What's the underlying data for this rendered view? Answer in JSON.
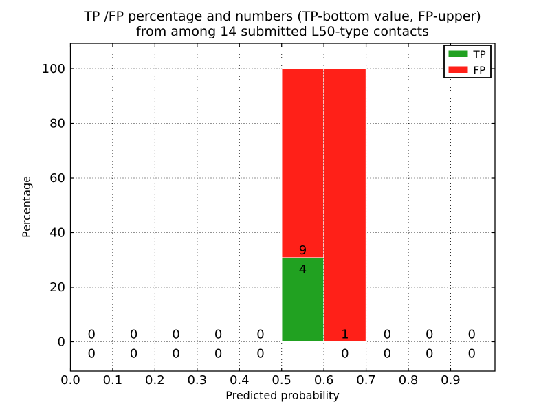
{
  "chart_data": {
    "type": "bar",
    "stacked": true,
    "title_line1": "TP /FP percentage and numbers (TP-bottom value, FP-upper)",
    "title_line2": "from among 14 submitted L50-type contacts",
    "xlabel": "Predicted probability",
    "ylabel": "Percentage",
    "total_contacts": 14,
    "bin_width": 0.1,
    "xlim": [
      0.0,
      1.005
    ],
    "ylim": [
      -10.8,
      109.3
    ],
    "xticks": [
      "0.0",
      "0.1",
      "0.2",
      "0.3",
      "0.4",
      "0.5",
      "0.6",
      "0.7",
      "0.8",
      "0.9"
    ],
    "yticks": [
      "0",
      "20",
      "40",
      "60",
      "80",
      "100"
    ],
    "grid": {
      "style": "dotted",
      "color": "#000000"
    },
    "series": [
      {
        "name": "TP",
        "color": "#21a121"
      },
      {
        "name": "FP",
        "color": "#ff2018"
      }
    ],
    "legend": {
      "position": "upper right",
      "entries": [
        {
          "label": "TP",
          "color": "#21a121"
        },
        {
          "label": "FP",
          "color": "#ff2018"
        }
      ]
    },
    "bins": [
      {
        "x_start": 0.0,
        "x_end": 0.1,
        "tp_count": 0,
        "fp_count": 0,
        "tp_pct": 0,
        "fp_pct": 0
      },
      {
        "x_start": 0.1,
        "x_end": 0.2,
        "tp_count": 0,
        "fp_count": 0,
        "tp_pct": 0,
        "fp_pct": 0
      },
      {
        "x_start": 0.2,
        "x_end": 0.3,
        "tp_count": 0,
        "fp_count": 0,
        "tp_pct": 0,
        "fp_pct": 0
      },
      {
        "x_start": 0.3,
        "x_end": 0.4,
        "tp_count": 0,
        "fp_count": 0,
        "tp_pct": 0,
        "fp_pct": 0
      },
      {
        "x_start": 0.4,
        "x_end": 0.5,
        "tp_count": 0,
        "fp_count": 0,
        "tp_pct": 0,
        "fp_pct": 0
      },
      {
        "x_start": 0.5,
        "x_end": 0.6,
        "tp_count": 4,
        "fp_count": 9,
        "tp_pct": 30.77,
        "fp_pct": 69.23
      },
      {
        "x_start": 0.6,
        "x_end": 0.7,
        "tp_count": 0,
        "fp_count": 1,
        "tp_pct": 0,
        "fp_pct": 100
      },
      {
        "x_start": 0.7,
        "x_end": 0.8,
        "tp_count": 0,
        "fp_count": 0,
        "tp_pct": 0,
        "fp_pct": 0
      },
      {
        "x_start": 0.8,
        "x_end": 0.9,
        "tp_count": 0,
        "fp_count": 0,
        "tp_pct": 0,
        "fp_pct": 0
      },
      {
        "x_start": 0.9,
        "x_end": 1.0,
        "tp_count": 0,
        "fp_count": 0,
        "tp_pct": 0,
        "fp_pct": 0
      }
    ]
  }
}
